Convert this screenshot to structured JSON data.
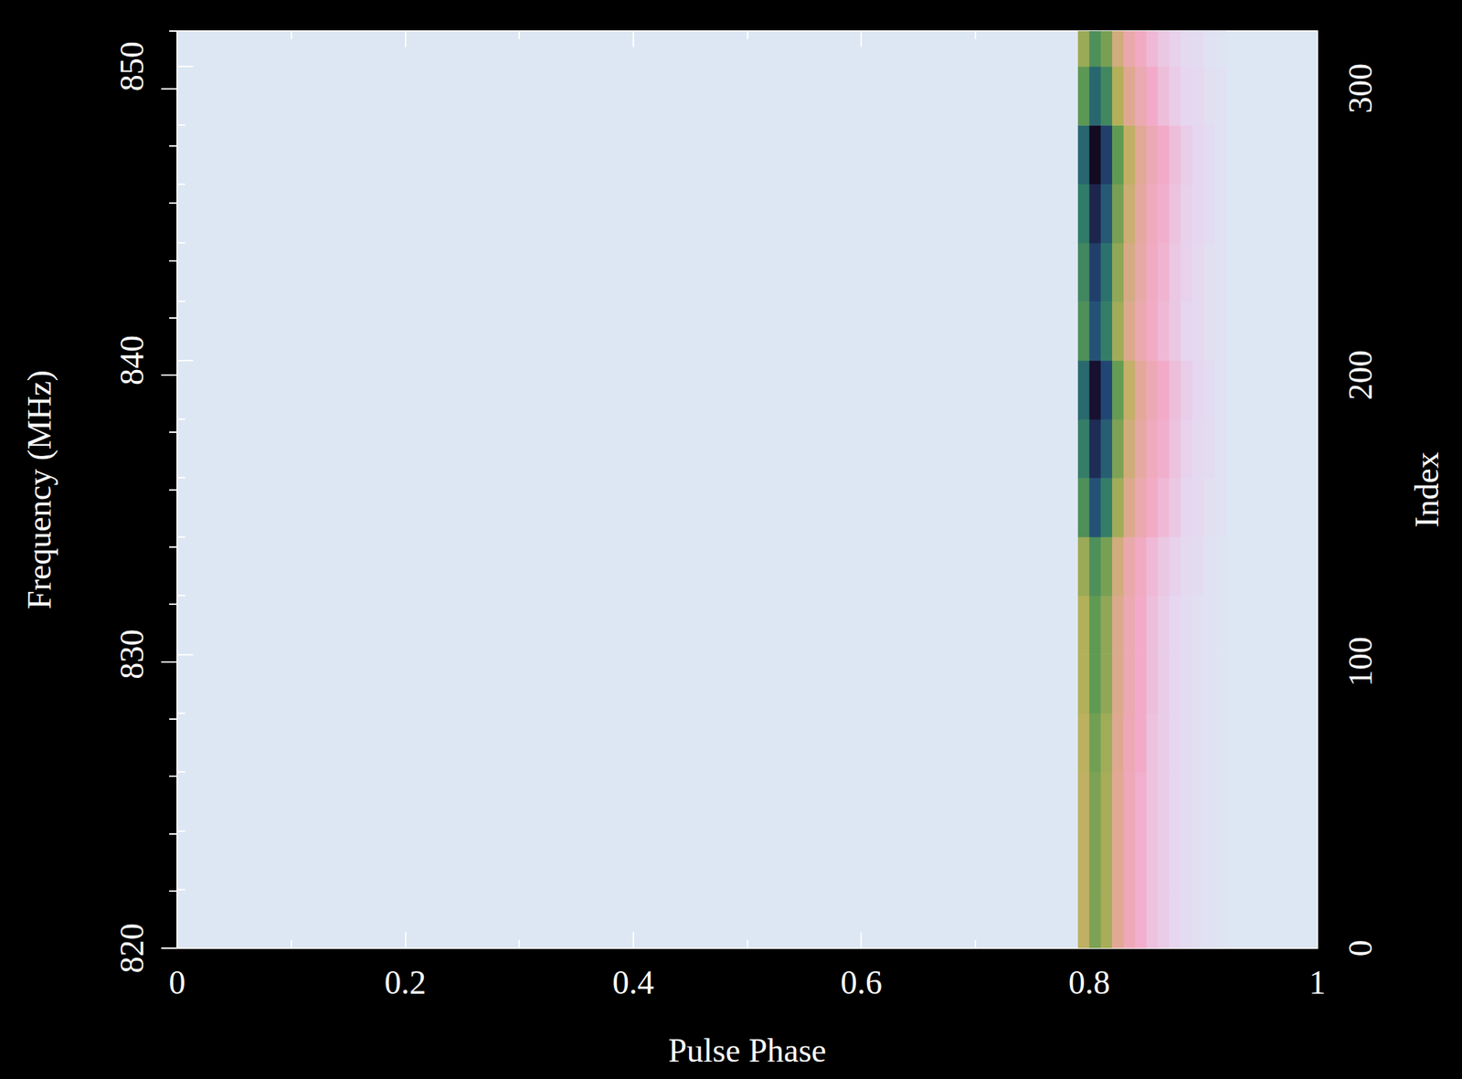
{
  "chart_data": {
    "type": "heatmap",
    "x_label": "Pulse Phase",
    "y_label": "Frequency (MHz)",
    "y2_label": "Index",
    "xlim": [
      0,
      1
    ],
    "xticks": [
      0,
      0.2,
      0.4,
      0.6,
      0.8,
      1
    ],
    "ylim": [
      820,
      851.2
    ],
    "yticks": [
      820,
      830,
      840,
      850
    ],
    "y2lim": [
      0,
      320
    ],
    "y2ticks": [
      0,
      100,
      200,
      300
    ],
    "phase": [
      0.79,
      0.8,
      0.81,
      0.82,
      0.83,
      0.84,
      0.85,
      0.86,
      0.87,
      0.88,
      0.89,
      0.9,
      0.91
    ],
    "frequency": [
      820,
      822,
      824,
      826,
      828,
      830,
      832,
      834,
      836,
      838,
      840,
      842,
      844,
      846,
      848,
      850
    ],
    "cell_width": 0.01,
    "cell_height": 2,
    "cells": [
      [
        0.38,
        0.5,
        0.43,
        0.28,
        0.19,
        0.14,
        0.1,
        0.08,
        0.06,
        0.04,
        0.03,
        0.02,
        0.01
      ],
      [
        0.38,
        0.5,
        0.43,
        0.28,
        0.19,
        0.14,
        0.1,
        0.08,
        0.06,
        0.04,
        0.03,
        0.02,
        0.01
      ],
      [
        0.38,
        0.5,
        0.43,
        0.28,
        0.19,
        0.14,
        0.1,
        0.08,
        0.06,
        0.04,
        0.03,
        0.02,
        0.01
      ],
      [
        0.39,
        0.52,
        0.44,
        0.29,
        0.2,
        0.15,
        0.1,
        0.08,
        0.06,
        0.04,
        0.03,
        0.02,
        0.01
      ],
      [
        0.41,
        0.55,
        0.47,
        0.3,
        0.21,
        0.15,
        0.11,
        0.08,
        0.06,
        0.04,
        0.03,
        0.02,
        0.01
      ],
      [
        0.41,
        0.55,
        0.47,
        0.3,
        0.21,
        0.15,
        0.11,
        0.08,
        0.06,
        0.04,
        0.03,
        0.02,
        0.01
      ],
      [
        0.45,
        0.6,
        0.51,
        0.33,
        0.23,
        0.17,
        0.12,
        0.09,
        0.07,
        0.05,
        0.04,
        0.02,
        0.01
      ],
      [
        0.6,
        0.8,
        0.68,
        0.44,
        0.3,
        0.22,
        0.16,
        0.12,
        0.09,
        0.06,
        0.05,
        0.03,
        0.02
      ],
      [
        0.68,
        0.9,
        0.77,
        0.5,
        0.34,
        0.25,
        0.18,
        0.14,
        0.1,
        0.07,
        0.05,
        0.04,
        0.02
      ],
      [
        0.74,
        0.98,
        0.83,
        0.54,
        0.37,
        0.27,
        0.2,
        0.15,
        0.11,
        0.08,
        0.06,
        0.04,
        0.02
      ],
      [
        0.6,
        0.8,
        0.68,
        0.44,
        0.3,
        0.22,
        0.16,
        0.12,
        0.09,
        0.06,
        0.05,
        0.03,
        0.02
      ],
      [
        0.64,
        0.85,
        0.72,
        0.47,
        0.32,
        0.24,
        0.17,
        0.13,
        0.09,
        0.07,
        0.05,
        0.03,
        0.02
      ],
      [
        0.69,
        0.92,
        0.78,
        0.51,
        0.35,
        0.26,
        0.18,
        0.14,
        0.1,
        0.07,
        0.06,
        0.04,
        0.02
      ],
      [
        0.75,
        1,
        0.85,
        0.55,
        0.38,
        0.28,
        0.2,
        0.15,
        0.11,
        0.08,
        0.06,
        0.04,
        0.02
      ],
      [
        0.56,
        0.75,
        0.64,
        0.41,
        0.29,
        0.21,
        0.15,
        0.11,
        0.08,
        0.06,
        0.05,
        0.03,
        0.02
      ],
      [
        0.45,
        0.6,
        0.51,
        0.33,
        0.23,
        0.17,
        0.12,
        0.09,
        0.07,
        0.05,
        0.04,
        0.02,
        0.01
      ]
    ],
    "color_range": [
      0,
      1
    ]
  }
}
